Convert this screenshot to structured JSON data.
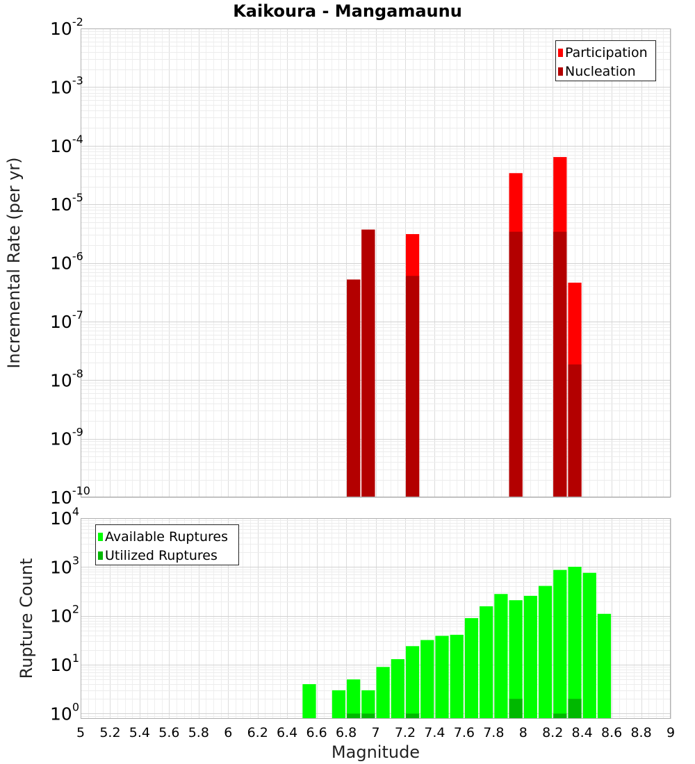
{
  "chart_data": [
    {
      "type": "bar",
      "title": "Kaikoura - Mangamaunu",
      "ylabel": "Incremental Rate (per yr)",
      "y_scale": "log",
      "ylim": [
        1e-10,
        0.01
      ],
      "y_ticks": [
        {
          "base": "10",
          "exp": "-10",
          "value": 1e-10
        },
        {
          "base": "10",
          "exp": "-9",
          "value": 1e-09
        },
        {
          "base": "10",
          "exp": "-8",
          "value": 1e-08
        },
        {
          "base": "10",
          "exp": "-7",
          "value": 1e-07
        },
        {
          "base": "10",
          "exp": "-6",
          "value": 1e-06
        },
        {
          "base": "10",
          "exp": "-5",
          "value": 1e-05
        },
        {
          "base": "10",
          "exp": "-4",
          "value": 0.0001
        },
        {
          "base": "10",
          "exp": "-3",
          "value": 0.001
        },
        {
          "base": "10",
          "exp": "-2",
          "value": 0.01
        }
      ],
      "xlim": [
        5,
        9
      ],
      "grid": true,
      "legend_position": "top-right",
      "series": [
        {
          "name": "Participation",
          "color": "#ff0000",
          "x": [
            6.85,
            6.95,
            7.25,
            7.95,
            8.25,
            8.35
          ],
          "values": [
            5.2e-07,
            3.7e-06,
            3.1e-06,
            3.4e-05,
            6.4e-05,
            4.6e-07
          ]
        },
        {
          "name": "Nucleation",
          "color": "#b30000",
          "x": [
            6.85,
            6.95,
            7.25,
            7.95,
            8.25,
            8.35
          ],
          "values": [
            5.2e-07,
            3.7e-06,
            6e-07,
            3.4e-06,
            3.4e-06,
            1.85e-08
          ]
        }
      ]
    },
    {
      "type": "bar",
      "xlabel": "Magnitude",
      "ylabel": "Rupture Count",
      "y_scale": "log",
      "ylim": [
        0.78,
        10000
      ],
      "y_ticks": [
        {
          "base": "10",
          "exp": "0",
          "value": 1
        },
        {
          "base": "10",
          "exp": "1",
          "value": 10
        },
        {
          "base": "10",
          "exp": "2",
          "value": 100
        },
        {
          "base": "10",
          "exp": "3",
          "value": 1000
        },
        {
          "base": "10",
          "exp": "4",
          "value": 10000
        }
      ],
      "xlim": [
        5,
        9
      ],
      "x_ticks": [
        "5",
        "5.2",
        "5.4",
        "5.6",
        "5.8",
        "6",
        "6.2",
        "6.4",
        "6.6",
        "6.8",
        "7",
        "7.2",
        "7.4",
        "7.6",
        "7.8",
        "8",
        "8.2",
        "8.4",
        "8.6",
        "8.8",
        "9"
      ],
      "grid": true,
      "legend_position": "top-left",
      "series": [
        {
          "name": "Available Ruptures",
          "color": "#00ff00",
          "x": [
            6.55,
            6.75,
            6.85,
            6.95,
            7.05,
            7.15,
            7.25,
            7.35,
            7.45,
            7.55,
            7.65,
            7.75,
            7.85,
            7.95,
            8.05,
            8.15,
            8.25,
            8.35,
            8.45,
            8.55
          ],
          "values": [
            4,
            3,
            5,
            3,
            9,
            13,
            24,
            32,
            39,
            41,
            90,
            157,
            280,
            209,
            257,
            410,
            870,
            1010,
            760,
            110
          ]
        },
        {
          "name": "Utilized Ruptures",
          "color": "#00b800",
          "x": [
            6.85,
            6.95,
            7.25,
            7.95,
            8.25,
            8.35
          ],
          "values": [
            1,
            1,
            1,
            2,
            1,
            2
          ]
        }
      ]
    }
  ]
}
